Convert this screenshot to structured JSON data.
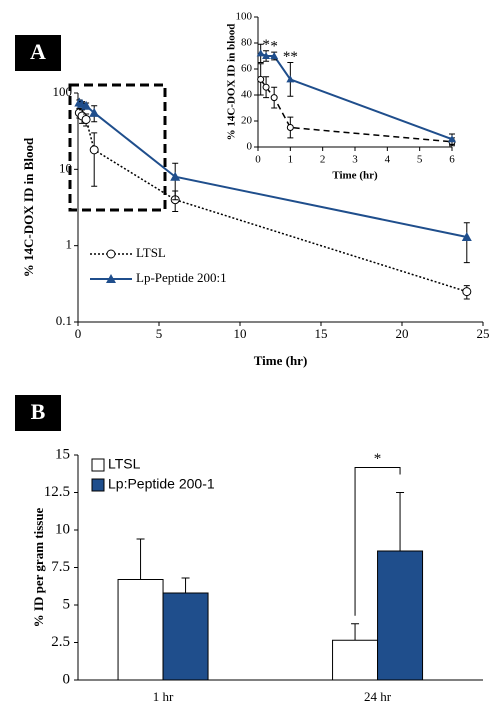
{
  "chart_data": [
    {
      "type": "line",
      "panel_label": "A",
      "y_label": "% 14C-DOX ID in Blood",
      "x_label": "Time (hr)",
      "log_y": true,
      "xlim": [
        0,
        25
      ],
      "ylim": [
        0.1,
        100
      ],
      "xticks": [
        0,
        5,
        10,
        15,
        20,
        25
      ],
      "yticks": [
        0.1,
        1,
        10,
        100
      ],
      "legend": "lower left",
      "series": [
        {
          "name": "LTSL",
          "color": "#000000",
          "marker": "circle",
          "dash": "dotted",
          "x": [
            0.083,
            0.25,
            0.5,
            1,
            6,
            24
          ],
          "values": [
            55,
            50,
            45,
            18,
            4,
            0.25
          ],
          "errors": [
            8,
            10,
            8,
            12,
            1.2,
            0.05
          ]
        },
        {
          "name": "Lp-Peptide 200:1",
          "color": "#1f4e8c",
          "marker": "triangle",
          "dash": "solid",
          "x": [
            0.083,
            0.25,
            0.5,
            1,
            6,
            24
          ],
          "values": [
            75,
            72,
            68,
            55,
            8,
            1.3
          ],
          "errors": [
            6,
            5,
            6,
            13,
            4,
            0.7
          ]
        }
      ]
    },
    {
      "type": "line",
      "y_label": "% 14C-DOX ID in blood",
      "x_label": "Time (hr)",
      "xlim": [
        0,
        6
      ],
      "ylim": [
        0,
        100
      ],
      "xticks": [
        0,
        1,
        2,
        3,
        4,
        5,
        6
      ],
      "yticks": [
        0,
        20,
        40,
        60,
        80,
        100
      ],
      "series": [
        {
          "name": "LTSL",
          "color": "#000000",
          "marker": "circle",
          "dash": "dashed",
          "x": [
            0.083,
            0.25,
            0.5,
            1,
            6
          ],
          "values": [
            52,
            46,
            38,
            15,
            4
          ],
          "errors": [
            12,
            8,
            8,
            8,
            3
          ]
        },
        {
          "name": "Lp-Peptide 200:1",
          "color": "#1f4e8c",
          "marker": "triangle",
          "dash": "solid",
          "x": [
            0.083,
            0.25,
            0.5,
            1,
            6
          ],
          "values": [
            72,
            70,
            70,
            52,
            6
          ],
          "errors": [
            7,
            4,
            3,
            13,
            4
          ]
        }
      ],
      "annotations": [
        {
          "text": "*",
          "x": 0.25
        },
        {
          "text": "*",
          "x": 0.5
        },
        {
          "text": "**",
          "x": 1
        }
      ]
    },
    {
      "type": "bar",
      "panel_label": "B",
      "y_label": "% ID per gram tissue",
      "categories": [
        "1 hr",
        "24 hr"
      ],
      "ylim": [
        0,
        15
      ],
      "yticks": [
        0,
        2.5,
        5,
        7.5,
        10,
        12.5,
        15
      ],
      "legend": "upper left",
      "series": [
        {
          "name": "LTSL",
          "color": "#ffffff",
          "values": [
            6.7,
            2.65
          ],
          "errors": [
            2.7,
            1.1
          ]
        },
        {
          "name": "Lp:Peptide 200-1",
          "color": "#1f4e8c",
          "values": [
            5.8,
            8.6
          ],
          "errors": [
            1.0,
            3.9
          ]
        }
      ],
      "annotations": [
        {
          "text": "*",
          "category": 1
        }
      ]
    }
  ]
}
